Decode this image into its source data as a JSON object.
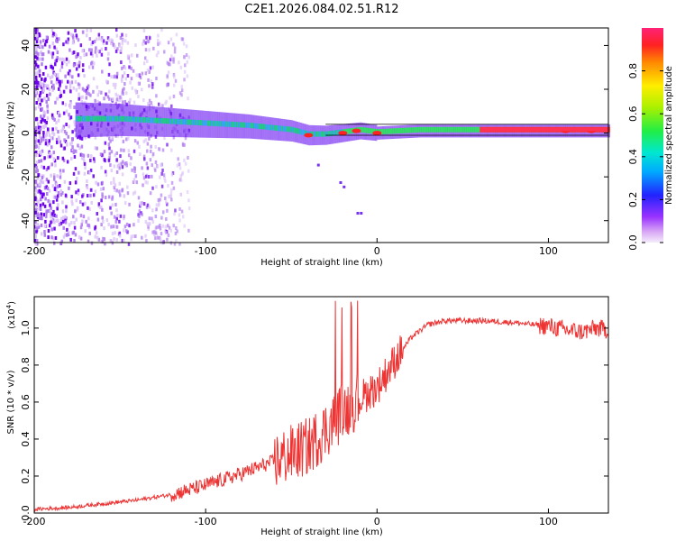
{
  "chart_data": [
    {
      "type": "heatmap",
      "title": "C2E1.2026.084.02.51.R12",
      "xlabel": "Height of straight line (km)",
      "ylabel": "Frequency (Hz)",
      "xlim": [
        -200,
        135
      ],
      "ylim": [
        -50,
        48
      ],
      "x_ticks": [
        "-200",
        "-100",
        "0",
        "100"
      ],
      "y_ticks": [
        "-40",
        "-20",
        "0",
        "20",
        "40"
      ],
      "colorbar": {
        "label": "Normalized spectral amplitude",
        "range": [
          0,
          1
        ],
        "ticks": [
          "0.0",
          "0.2",
          "0.4",
          "0.6",
          "0.8"
        ]
      },
      "ridge": {
        "x": [
          -175,
          -150,
          -125,
          -100,
          -75,
          -50,
          -40,
          -30,
          -20,
          -10,
          0,
          25,
          50,
          75,
          100,
          110,
          125,
          135
        ],
        "y": [
          6,
          6,
          5,
          4,
          3,
          1,
          -1,
          -1,
          0,
          1,
          0,
          1,
          1,
          1,
          1,
          1,
          1,
          1
        ]
      }
    },
    {
      "type": "line",
      "title": "",
      "xlabel": "Height of straight line (km)",
      "ylabel": "SNR (10 * v/v)",
      "y_scale_label": "(x10",
      "y_scale_exp": "4",
      "xlim": [
        -200,
        135
      ],
      "ylim": [
        0,
        1.17
      ],
      "x_ticks": [
        "-200",
        "-100",
        "0",
        "100"
      ],
      "y_ticks": [
        "0.0",
        "0.2",
        "0.4",
        "0.6",
        "0.8",
        "1.0"
      ],
      "series": [
        {
          "name": "SNR",
          "color": "#ee3333",
          "x": [
            -200,
            -180,
            -160,
            -140,
            -120,
            -100,
            -80,
            -60,
            -40,
            -30,
            -20,
            -10,
            0,
            10,
            20,
            30,
            40,
            60,
            80,
            100,
            110,
            120,
            128,
            135
          ],
          "y": [
            0.02,
            0.03,
            0.05,
            0.07,
            0.1,
            0.15,
            0.21,
            0.28,
            0.36,
            0.45,
            0.55,
            0.62,
            0.68,
            0.82,
            0.95,
            1.02,
            1.04,
            1.04,
            1.03,
            1.01,
            0.99,
            0.98,
            1.0,
            0.99
          ]
        }
      ]
    }
  ]
}
